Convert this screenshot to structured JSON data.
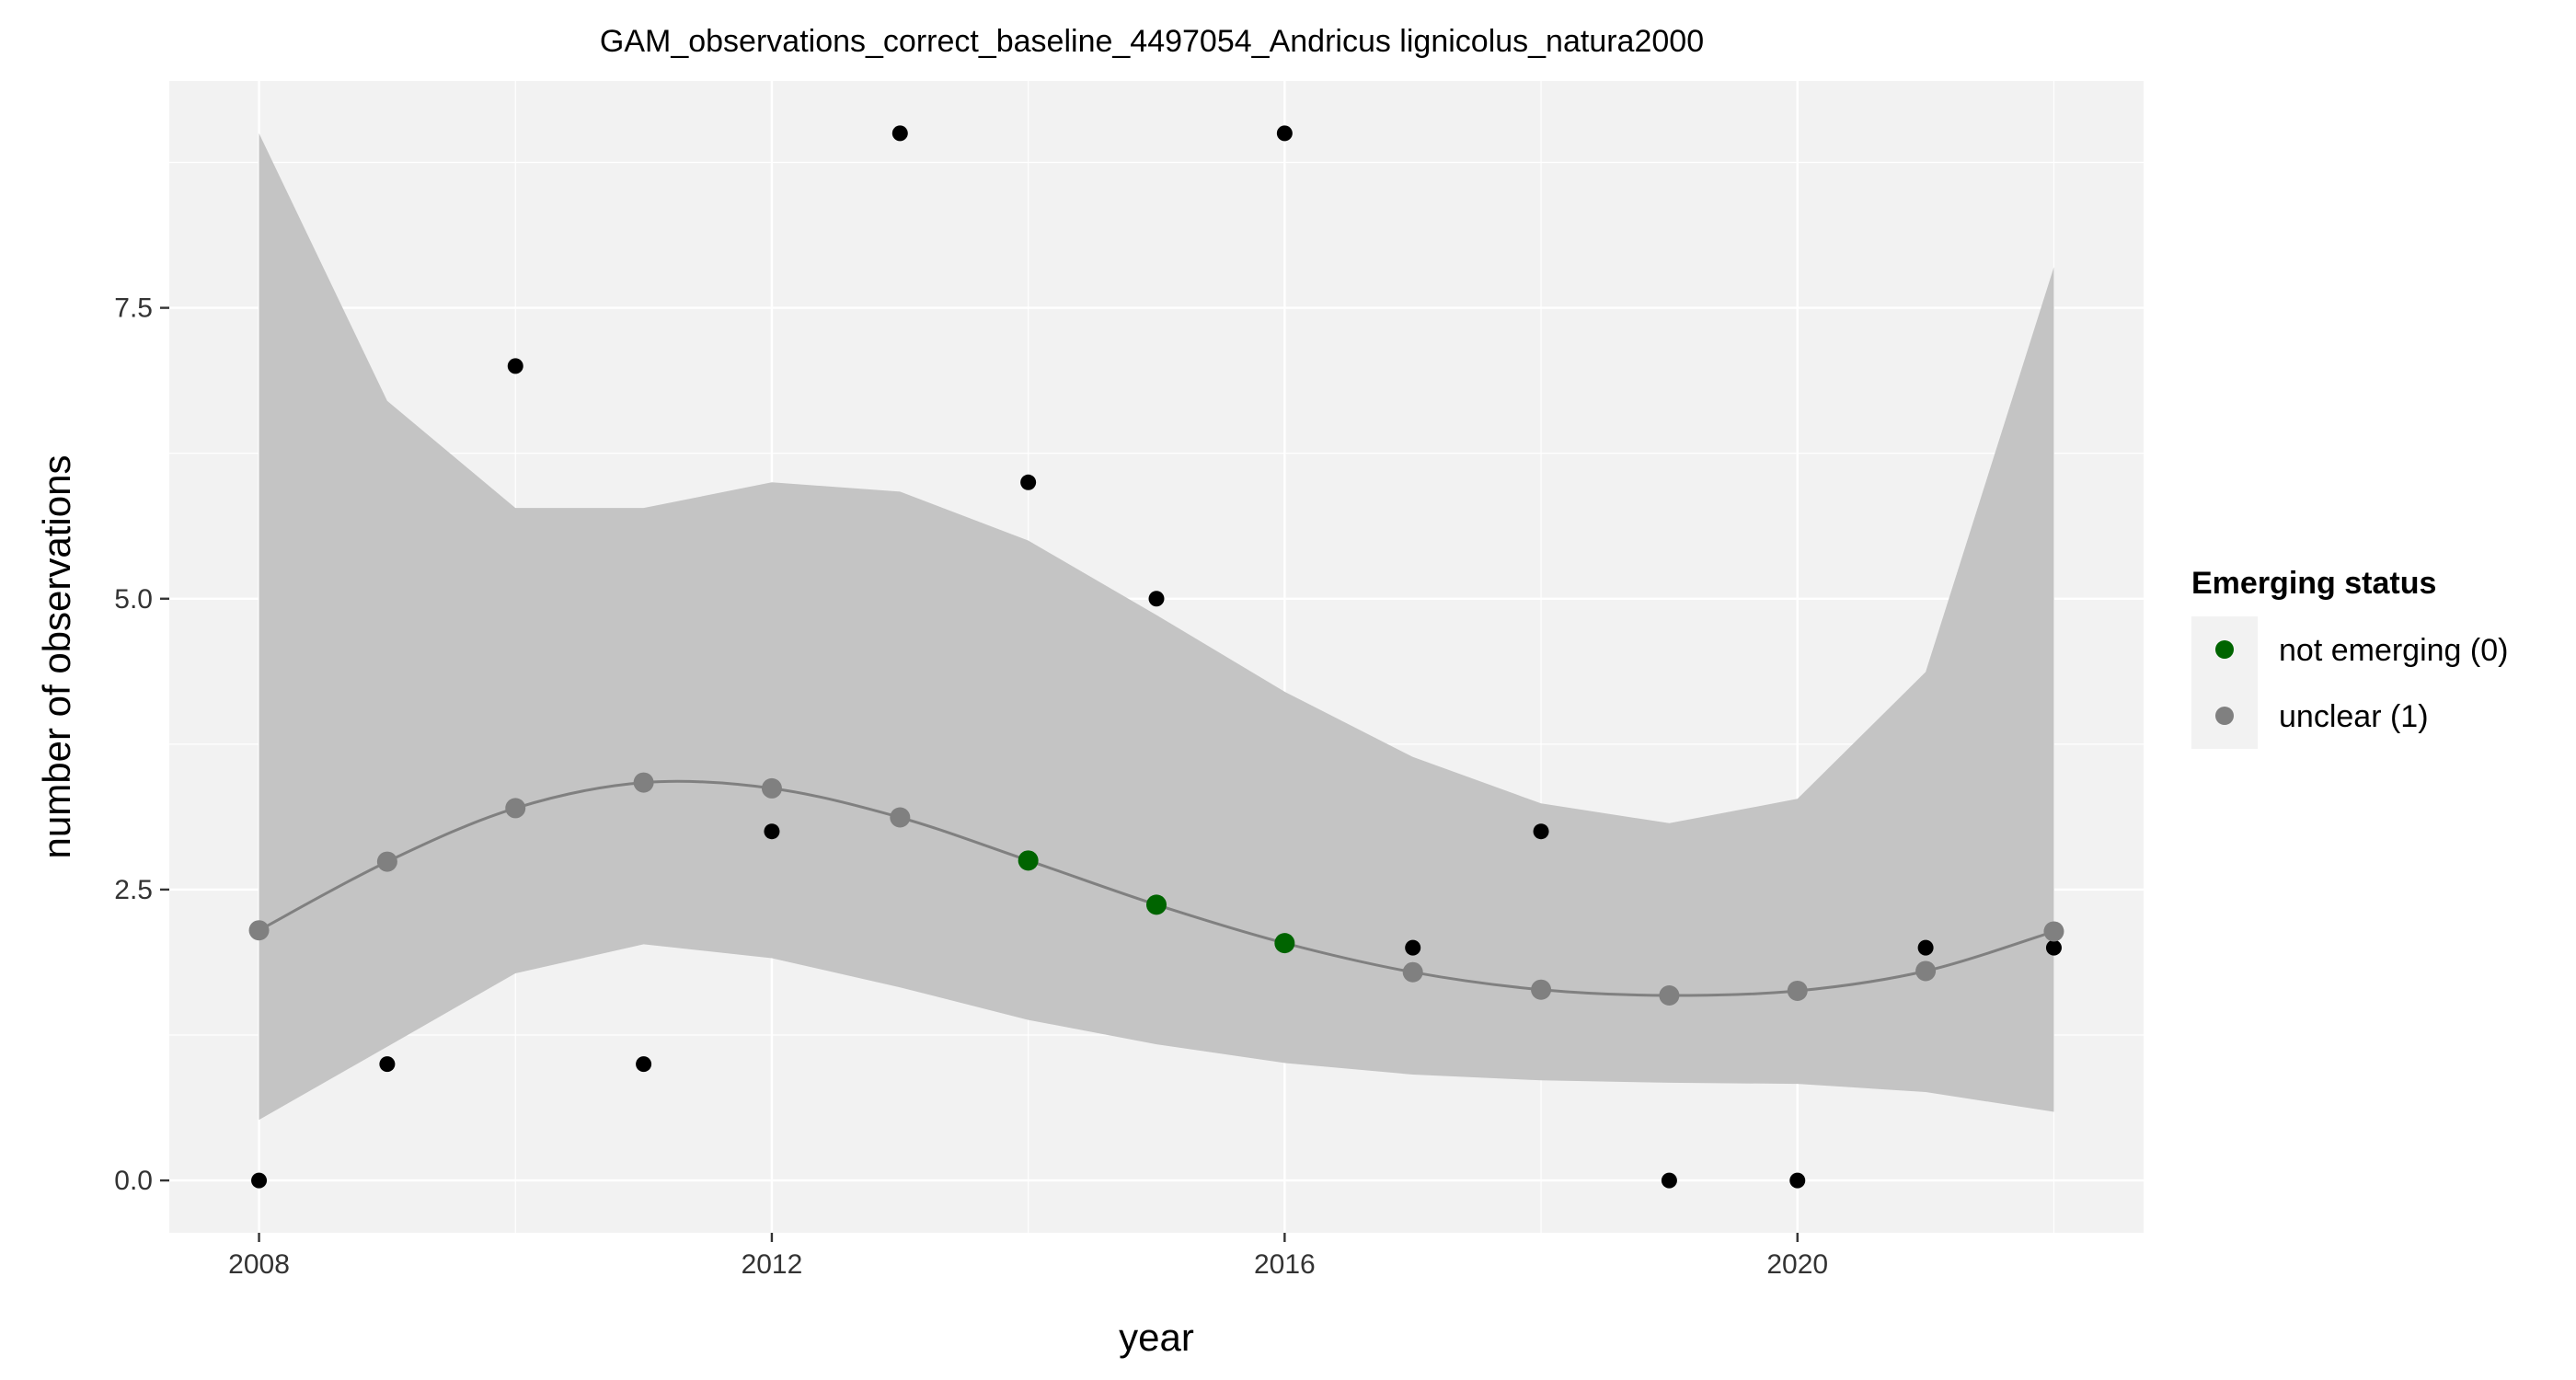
{
  "chart_data": {
    "type": "line",
    "title": "GAM_observations_correct_baseline_4497054_Andricus lignicolus_natura2000",
    "xlabel": "year",
    "ylabel": "number of observations",
    "xlim": [
      2007.3,
      2022.7
    ],
    "ylim": [
      -0.45,
      9.45
    ],
    "x_ticks": [
      2008,
      2012,
      2016,
      2020
    ],
    "y_ticks": [
      0,
      2.5,
      5,
      7.5
    ],
    "x_tick_labels": [
      "2008",
      "2012",
      "2016",
      "2020"
    ],
    "y_tick_labels": [
      "0.0",
      "2.5",
      "5.0",
      "7.5"
    ],
    "grid": true,
    "legend": {
      "title": "Emerging status",
      "position": "right",
      "items": [
        {
          "label": "not emerging (0)",
          "color": "#006400"
        },
        {
          "label": "unclear (1)",
          "color": "#808080"
        }
      ]
    },
    "observed": {
      "x": [
        2008,
        2009,
        2010,
        2011,
        2012,
        2013,
        2014,
        2015,
        2016,
        2017,
        2018,
        2019,
        2020,
        2021,
        2022
      ],
      "y": [
        0,
        1,
        7,
        1,
        3,
        9,
        6,
        5,
        9,
        2,
        3,
        0,
        0,
        2,
        2
      ]
    },
    "fitted": {
      "x": [
        2008,
        2009,
        2010,
        2011,
        2012,
        2013,
        2014,
        2015,
        2016,
        2017,
        2018,
        2019,
        2020,
        2021,
        2022
      ],
      "y": [
        2.15,
        2.74,
        3.2,
        3.42,
        3.37,
        3.12,
        2.75,
        2.37,
        2.04,
        1.79,
        1.64,
        1.59,
        1.63,
        1.8,
        2.14
      ],
      "status": [
        1,
        1,
        1,
        1,
        1,
        1,
        0,
        0,
        0,
        1,
        1,
        1,
        1,
        1,
        1
      ]
    },
    "confidence_band": {
      "x": [
        2008,
        2009,
        2010,
        2011,
        2012,
        2013,
        2014,
        2015,
        2016,
        2017,
        2018,
        2019,
        2020,
        2021,
        2022
      ],
      "lower": [
        0.52,
        1.15,
        1.78,
        2.03,
        1.91,
        1.66,
        1.38,
        1.17,
        1.01,
        0.91,
        0.86,
        0.84,
        0.83,
        0.76,
        0.59
      ],
      "upper": [
        9.0,
        6.7,
        5.78,
        5.78,
        6.0,
        5.92,
        5.5,
        4.86,
        4.2,
        3.64,
        3.24,
        3.07,
        3.28,
        4.37,
        7.85
      ]
    },
    "colors": {
      "panel": "#F2F2F2",
      "grid": "#FFFFFF",
      "band": "#C4C4C4",
      "fit_line": "#808080",
      "observed_point": "#000000",
      "not_emerging": "#006400",
      "unclear": "#808080"
    }
  }
}
